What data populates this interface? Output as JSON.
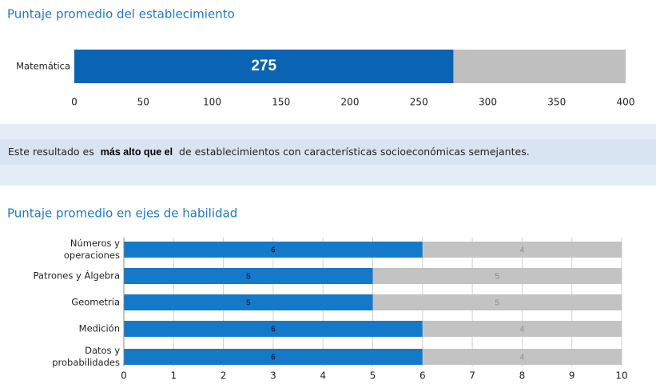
{
  "chart_data": [
    {
      "type": "bar",
      "orientation": "horizontal",
      "title": "Puntaje promedio del establecimiento",
      "categories": [
        "Matemática"
      ],
      "values": [
        275
      ],
      "color": "#0a63b3",
      "background_color": "#bfbfbf",
      "xlim": [
        0,
        400
      ],
      "xticks": [
        0,
        50,
        100,
        150,
        200,
        250,
        300,
        350,
        400
      ]
    },
    {
      "type": "stacked_bar",
      "orientation": "horizontal",
      "title": "Puntaje promedio en ejes de habilidad",
      "categories": [
        "Números y operaciones",
        "Patrones y Álgebra",
        "Geometría",
        "Medición",
        "Datos y probabilidades"
      ],
      "series": [
        {
          "color": "#1479c9",
          "label_color": "#0d2a55",
          "values": [
            6,
            5,
            5,
            6,
            6
          ]
        },
        {
          "color": "#c3c3c3",
          "label_color": "#8a8a8a",
          "values": [
            4,
            5,
            5,
            4,
            4
          ]
        }
      ],
      "xlim": [
        0,
        10
      ],
      "xticks": [
        0,
        1,
        2,
        3,
        4,
        5,
        6,
        7,
        8,
        9,
        10
      ],
      "grid": true
    }
  ],
  "banner": {
    "before": "Este resultado es",
    "highlight": "más alto que el",
    "after": "de establecimientos con características socioeconómicas semejantes."
  }
}
